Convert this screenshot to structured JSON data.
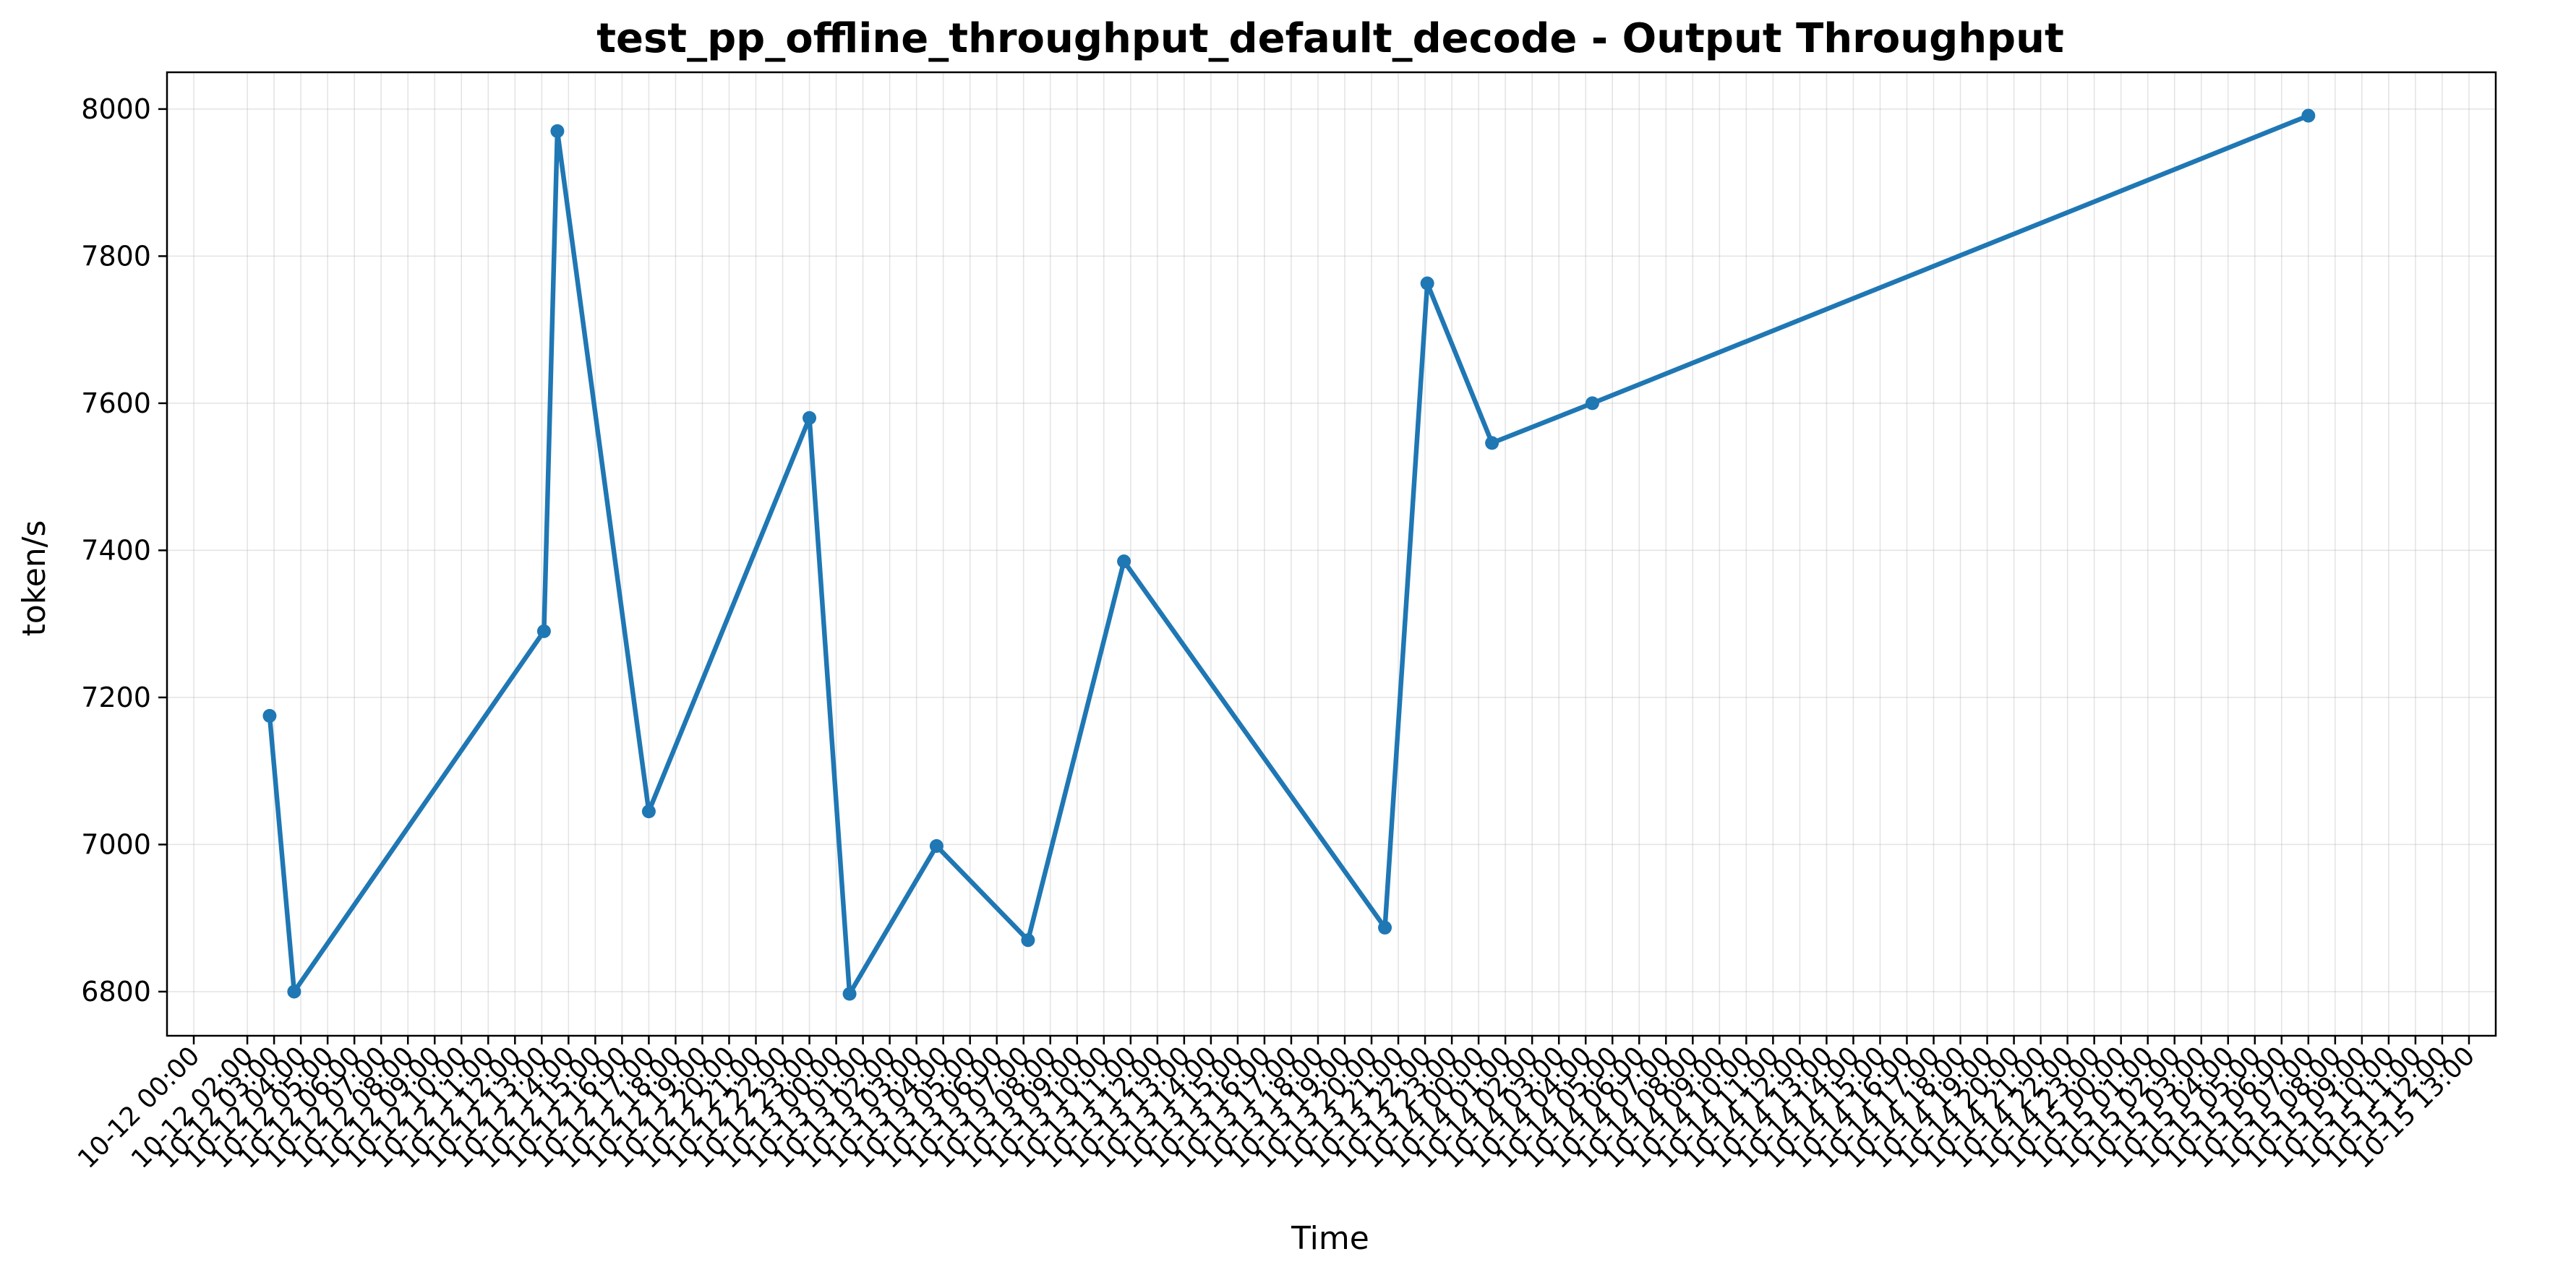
{
  "chart_data": {
    "type": "line",
    "title": "test_pp_offline_throughput_default_decode - Output Throughput",
    "xlabel": "Time",
    "ylabel": "token/s",
    "ylim": [
      6740,
      8050
    ],
    "yticks": [
      6800,
      7000,
      7200,
      7400,
      7600,
      7800,
      8000
    ],
    "grid": true,
    "color": "#1f77b4",
    "x_ticks_hours": [
      "10-12 00:00",
      "10-12 02:00",
      "10-12 03:00",
      "10-12 04:00",
      "10-12 05:00",
      "10-12 06:00",
      "10-12 07:00",
      "10-12 08:00",
      "10-12 09:00",
      "10-12 10:00",
      "10-12 11:00",
      "10-12 12:00",
      "10-12 13:00",
      "10-12 14:00",
      "10-12 15:00",
      "10-12 16:00",
      "10-12 17:00",
      "10-12 18:00",
      "10-12 19:00",
      "10-12 20:00",
      "10-12 21:00",
      "10-12 22:00",
      "10-12 23:00",
      "10-13 00:00",
      "10-13 01:00",
      "10-13 02:00",
      "10-13 03:00",
      "10-13 04:00",
      "10-13 05:00",
      "10-13 06:00",
      "10-13 07:00",
      "10-13 08:00",
      "10-13 09:00",
      "10-13 10:00",
      "10-13 11:00",
      "10-13 12:00",
      "10-13 13:00",
      "10-13 14:00",
      "10-13 15:00",
      "10-13 16:00",
      "10-13 17:00",
      "10-13 18:00",
      "10-13 19:00",
      "10-13 20:00",
      "10-13 21:00",
      "10-13 22:00",
      "10-13 23:00",
      "10-14 00:00",
      "10-14 01:00",
      "10-14 02:00",
      "10-14 03:00",
      "10-14 04:00",
      "10-14 05:00",
      "10-14 06:00",
      "10-14 07:00",
      "10-14 08:00",
      "10-14 09:00",
      "10-14 10:00",
      "10-14 11:00",
      "10-14 12:00",
      "10-14 13:00",
      "10-14 14:00",
      "10-14 15:00",
      "10-14 16:00",
      "10-14 17:00",
      "10-14 18:00",
      "10-14 19:00",
      "10-14 20:00",
      "10-14 21:00",
      "10-14 22:00",
      "10-14 23:00",
      "10-15 00:00",
      "10-15 01:00",
      "10-15 02:00",
      "10-15 03:00",
      "10-15 04:00",
      "10-15 05:00",
      "10-15 06:00",
      "10-15 07:00",
      "10-15 08:00",
      "10-15 09:00",
      "10-15 10:00",
      "10-15 11:00",
      "10-15 12:00",
      "10-15 13:00"
    ],
    "x_range": [
      "10-11 23:00",
      "10-15 14:00"
    ],
    "series": [
      {
        "x": [
          "10-12 02:50",
          "10-12 03:45",
          "10-12 13:05",
          "10-12 13:35",
          "10-12 17:00",
          "10-12 23:00",
          "10-13 00:30",
          "10-13 03:45",
          "10-13 07:10",
          "10-13 10:45",
          "10-13 20:30",
          "10-13 22:05",
          "10-14 00:30",
          "10-14 04:15",
          "10-15 07:00"
        ],
        "y": [
          7175,
          6800,
          7290,
          7970,
          7045,
          7580,
          6797,
          6998,
          6870,
          7385,
          6887,
          7763,
          7546,
          7600,
          7991
        ]
      }
    ]
  }
}
